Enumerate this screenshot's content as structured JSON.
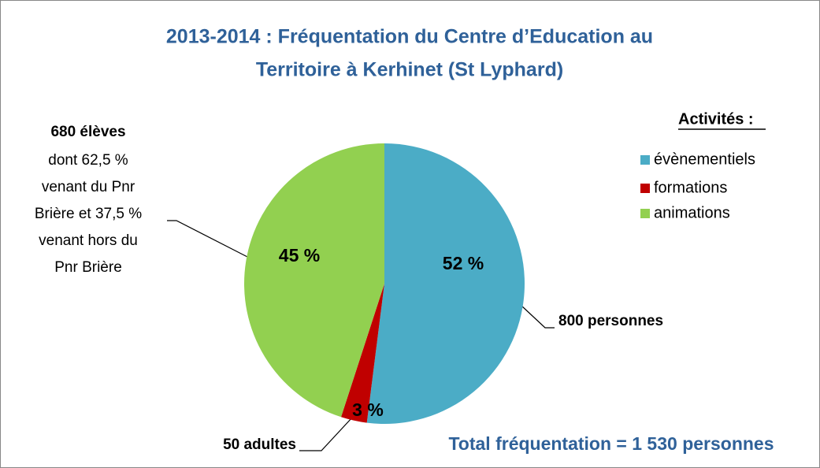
{
  "chart_data": {
    "type": "pie",
    "title": [
      "2013-2014 : Fréquentation du Centre d’Education au",
      "Territoire à Kerhinet (St Lyphard)"
    ],
    "categories": [
      "évènementiels",
      "formations",
      "animations"
    ],
    "values": [
      52,
      3,
      45
    ],
    "value_labels": [
      "52 %",
      "3 %",
      "45 %"
    ],
    "colors": [
      "#4bacc6",
      "#c00000",
      "#92d050"
    ],
    "legend_title": "Activités :",
    "annotations": {
      "events": "800 personnes",
      "training": "50 adultes",
      "pupils": {
        "heading": "680 élèves",
        "lines": [
          "dont 62,5 %",
          "venant du Pnr",
          "Brière et  37,5 %",
          "venant hors du",
          "Pnr Brière"
        ]
      },
      "total": "Total fréquentation = 1 530 personnes"
    }
  }
}
